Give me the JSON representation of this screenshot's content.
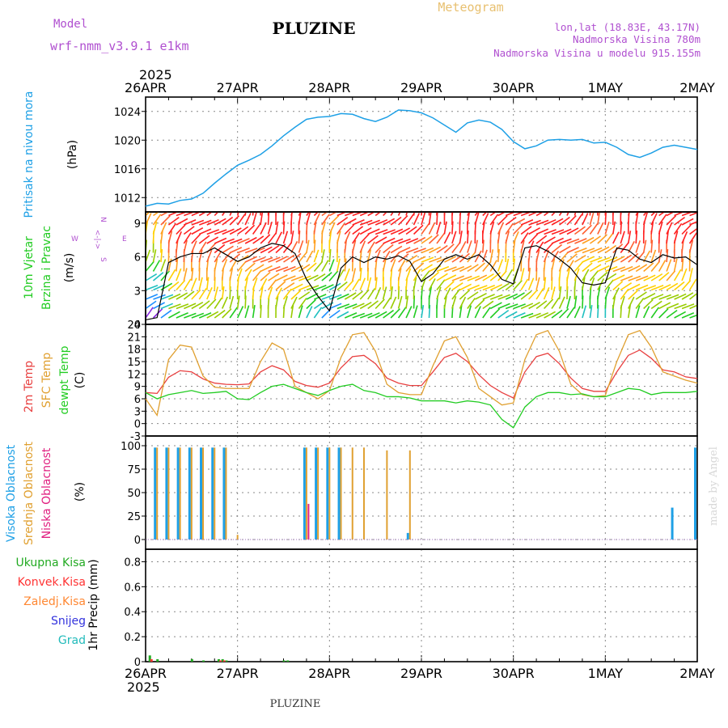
{
  "header": {
    "model_label": "Model",
    "model_name": "wrf-nmm_v3.9.1  e1km",
    "station": "PLUZINE",
    "product": "Meteogram",
    "lonlat": "lon,lat (18.83E, 43.17N)",
    "elevation": "Nadmorska Visina 780m",
    "model_elevation": "Nadmorska Visina u modelu 915.155m"
  },
  "footer": {
    "station": "PLUZINE",
    "credit": "made by Angel"
  },
  "time_axis": {
    "year": "2025",
    "labels": [
      "26APR",
      "27APR",
      "28APR",
      "29APR",
      "30APR",
      "1MAY",
      "2MAY"
    ]
  },
  "colors": {
    "pressure": "#1ea0e6",
    "wind_speed": "#000000",
    "gust": "#ff3333",
    "temp_2m": "#e84040",
    "temp_sfc": "#e0a030",
    "dewpoint": "#22cc22",
    "cloud_high": "#1ea0e6",
    "cloud_mid": "#e0a030",
    "cloud_low": "#e02080",
    "precip_total": "#22aa22",
    "precip_conv": "#ff3333"
  },
  "panels": {
    "pressure": {
      "labels": [
        {
          "text": "Pritisak na nivou mora",
          "color": "#1ea0e6"
        }
      ],
      "unit": "(hPa)",
      "ticks": [
        "1012",
        "1016",
        "1020",
        "1024"
      ]
    },
    "wind": {
      "labels": [
        {
          "text": "10m Vjetar",
          "color": "#22cc22"
        },
        {
          "text": "Brzina i Pravac",
          "color": "#22cc22"
        }
      ],
      "unit": "(m/s)",
      "ticks": [
        "0",
        "3",
        "6",
        "9"
      ],
      "compass": {
        "n": "N",
        "s": "S",
        "w": "W",
        "e": "E",
        "arrows": "<-|->"
      }
    },
    "temperature": {
      "labels": [
        {
          "text": "2m Temp",
          "color": "#e84040"
        },
        {
          "text": "SFC Temp",
          "color": "#e0a030"
        },
        {
          "text": "dewpt Temp",
          "color": "#22cc22"
        }
      ],
      "unit": "(C)",
      "ticks": [
        "-3",
        "0",
        "3",
        "6",
        "9",
        "12",
        "15",
        "18",
        "21",
        "24"
      ]
    },
    "cloud": {
      "labels": [
        {
          "text": "Visoka Oblacnost",
          "color": "#1ea0e6"
        },
        {
          "text": "Srednja Oblacnost",
          "color": "#e0a030"
        },
        {
          "text": "Niska Oblacnost",
          "color": "#e02080"
        }
      ],
      "unit": "(%)",
      "ticks": [
        "0",
        "25",
        "50",
        "75",
        "100"
      ]
    },
    "precip": {
      "unit": "1hr Precip (mm)",
      "ticks": [
        "0",
        "0.2",
        "0.4",
        "0.6",
        "0.8"
      ],
      "legend": [
        {
          "text": "Ukupna Kisa",
          "color": "#22aa22"
        },
        {
          "text": "Konvek.Kisa",
          "color": "#ff3333"
        },
        {
          "text": "Zaledj.Kisa",
          "color": "#ff8833"
        },
        {
          "text": "Snijeg",
          "color": "#3333dd"
        },
        {
          "text": "Grad",
          "color": "#22bbbb"
        }
      ]
    }
  },
  "chart_data": [
    {
      "type": "line",
      "title": "Pritisak na nivou mora",
      "ylabel": "(hPa)",
      "ylim": [
        1010,
        1026
      ],
      "x_unit": "hours from 26APR 00 UTC",
      "series": [
        {
          "name": "Pritisak na nivou mora",
          "x": [
            0,
            3,
            6,
            9,
            12,
            15,
            18,
            21,
            24,
            27,
            30,
            33,
            36,
            39,
            42,
            45,
            48,
            51,
            54,
            57,
            60,
            63,
            66,
            69,
            72,
            75,
            78,
            81,
            84,
            87,
            90,
            93,
            96,
            99,
            102,
            105,
            108,
            111,
            114,
            117,
            120,
            123,
            126,
            129,
            132,
            135,
            138,
            141,
            144
          ],
          "values": [
            1010.8,
            1011.2,
            1011.1,
            1011.6,
            1011.8,
            1012.6,
            1014.0,
            1015.3,
            1016.5,
            1017.2,
            1018.0,
            1019.2,
            1020.6,
            1021.8,
            1022.9,
            1023.2,
            1023.3,
            1023.7,
            1023.6,
            1023.0,
            1022.6,
            1023.2,
            1024.2,
            1024.1,
            1023.8,
            1023.1,
            1022.1,
            1021.1,
            1022.4,
            1022.8,
            1022.5,
            1021.5,
            1019.8,
            1018.8,
            1019.2,
            1020.0,
            1020.1,
            1020.0,
            1020.1,
            1019.6,
            1019.7,
            1019.0,
            1018.0,
            1017.6,
            1018.2,
            1019.0,
            1019.3,
            1019.0,
            1018.7
          ]
        }
      ]
    },
    {
      "type": "line",
      "title": "10m Vjetar Brzina i Pravac",
      "ylabel": "(m/s)",
      "ylim": [
        0,
        10
      ],
      "x_unit": "hours from 26APR 00 UTC",
      "series": [
        {
          "name": "10m Vjetar",
          "x": [
            0,
            3,
            6,
            9,
            12,
            15,
            18,
            21,
            24,
            27,
            30,
            33,
            36,
            39,
            42,
            45,
            48,
            51,
            54,
            57,
            60,
            63,
            66,
            69,
            72,
            75,
            78,
            81,
            84,
            87,
            90,
            93,
            96,
            99,
            102,
            105,
            108,
            111,
            114,
            117,
            120,
            123,
            126,
            129,
            132,
            135,
            138,
            141,
            144
          ],
          "values": [
            0.4,
            0.6,
            5.5,
            6.0,
            6.3,
            6.3,
            6.8,
            6.2,
            5.6,
            6.0,
            6.8,
            7.2,
            7.0,
            6.3,
            4.0,
            2.5,
            1.2,
            5.0,
            6.0,
            5.5,
            6.0,
            5.8,
            6.1,
            5.6,
            3.8,
            4.5,
            5.8,
            6.2,
            5.8,
            6.2,
            5.3,
            4.0,
            3.6,
            6.8,
            7.0,
            6.5,
            5.8,
            5.0,
            3.7,
            3.5,
            3.7,
            6.8,
            6.6,
            5.8,
            5.5,
            6.2,
            5.9,
            6.0,
            5.3
          ]
        }
      ]
    },
    {
      "type": "line",
      "title": "2m Temp / SFC Temp / dewpt Temp",
      "ylabel": "(C)",
      "ylim": [
        -3,
        24
      ],
      "x_unit": "hours from 26APR 00 UTC",
      "x": [
        0,
        3,
        6,
        9,
        12,
        15,
        18,
        21,
        24,
        27,
        30,
        33,
        36,
        39,
        42,
        45,
        48,
        51,
        54,
        57,
        60,
        63,
        66,
        69,
        72,
        75,
        78,
        81,
        84,
        87,
        90,
        93,
        96,
        99,
        102,
        105,
        108,
        111,
        114,
        117,
        120,
        123,
        126,
        129,
        132,
        135,
        138,
        141,
        144
      ],
      "series": [
        {
          "name": "2m Temp",
          "values": [
            7.5,
            7.3,
            11.2,
            12.8,
            12.5,
            10.8,
            9.8,
            9.5,
            9.4,
            9.6,
            12.5,
            14.0,
            13.0,
            10.2,
            9.2,
            8.8,
            9.8,
            13.5,
            16.2,
            16.5,
            14.5,
            11.0,
            9.8,
            9.2,
            9.2,
            12.5,
            16.0,
            17.0,
            15.0,
            11.8,
            9.2,
            7.5,
            6.2,
            12.5,
            16.2,
            17.0,
            14.5,
            11.0,
            8.5,
            7.8,
            7.8,
            12.5,
            16.5,
            17.8,
            15.8,
            13.0,
            12.5,
            11.3,
            10.9
          ]
        },
        {
          "name": "SFC Temp",
          "values": [
            6.0,
            2.0,
            15.5,
            19.0,
            18.5,
            11.5,
            8.8,
            8.5,
            8.5,
            8.5,
            15.0,
            19.5,
            18.0,
            9.0,
            7.5,
            6.0,
            8.0,
            16.0,
            21.5,
            22.0,
            17.5,
            9.5,
            7.5,
            7.0,
            7.0,
            14.0,
            20.0,
            21.0,
            16.0,
            8.5,
            6.5,
            4.5,
            5.0,
            15.5,
            21.5,
            22.5,
            17.5,
            9.5,
            7.0,
            6.5,
            6.8,
            15.0,
            21.5,
            22.5,
            18.5,
            12.5,
            11.5,
            10.5,
            9.8
          ]
        },
        {
          "name": "dewpt Temp",
          "values": [
            7.5,
            6.0,
            7.0,
            7.5,
            8.0,
            7.3,
            7.5,
            7.8,
            6.0,
            5.8,
            7.5,
            9.0,
            9.5,
            8.5,
            7.5,
            6.8,
            8.0,
            9.0,
            9.5,
            8.0,
            7.5,
            6.5,
            6.5,
            6.2,
            5.5,
            5.5,
            5.5,
            5.0,
            5.5,
            5.2,
            4.5,
            1.0,
            -1.0,
            4.0,
            6.5,
            7.5,
            7.5,
            7.0,
            7.2,
            6.5,
            6.5,
            7.5,
            8.5,
            8.2,
            7.0,
            7.5,
            7.5,
            7.5,
            7.8
          ]
        }
      ]
    },
    {
      "type": "bar",
      "title": "Visoka / Srednja / Niska Oblacnost",
      "ylabel": "(%)",
      "ylim": [
        0,
        100
      ],
      "x_unit": "hours from 26APR 00 UTC",
      "x": [
        0,
        3,
        6,
        9,
        12,
        15,
        18,
        21,
        24,
        27,
        30,
        33,
        36,
        39,
        42,
        45,
        48,
        51,
        54,
        57,
        60,
        63,
        66,
        69,
        72,
        75,
        78,
        81,
        84,
        87,
        90,
        93,
        96,
        99,
        102,
        105,
        108,
        111,
        114,
        117,
        120,
        123,
        126,
        129,
        132,
        135,
        138,
        141,
        144
      ],
      "series": [
        {
          "name": "Visoka Oblacnost",
          "values": [
            0,
            98,
            98,
            98,
            98,
            98,
            98,
            98,
            0,
            0,
            0,
            0,
            0,
            0,
            98,
            98,
            98,
            98,
            0,
            0,
            0,
            0,
            0,
            7,
            0,
            0,
            0,
            0,
            0,
            0,
            0,
            0,
            0,
            0,
            0,
            0,
            0,
            0,
            0,
            0,
            0,
            0,
            0,
            0,
            0,
            0,
            34,
            0,
            98
          ]
        },
        {
          "name": "Srednja Oblacnost",
          "values": [
            0,
            98,
            98,
            98,
            98,
            98,
            98,
            98,
            5,
            0,
            0,
            0,
            0,
            0,
            98,
            98,
            98,
            98,
            98,
            98,
            0,
            95,
            0,
            95,
            0,
            0,
            0,
            0,
            0,
            0,
            0,
            0,
            0,
            0,
            0,
            0,
            0,
            0,
            0,
            0,
            0,
            0,
            0,
            0,
            0,
            0,
            0,
            0,
            0
          ]
        },
        {
          "name": "Niska Oblacnost",
          "values": [
            0,
            0,
            0,
            0,
            0,
            0,
            0,
            0,
            0,
            0,
            0,
            0,
            0,
            0,
            38,
            0,
            0,
            0,
            0,
            0,
            0,
            0,
            0,
            0,
            0,
            0,
            0,
            0,
            0,
            0,
            0,
            0,
            0,
            0,
            0,
            0,
            0,
            0,
            0,
            0,
            0,
            0,
            0,
            0,
            0,
            0,
            0,
            0,
            0
          ]
        }
      ]
    },
    {
      "type": "bar",
      "title": "1hr Precip",
      "ylabel": "1hr Precip (mm)",
      "ylim": [
        0,
        0.9
      ],
      "x_unit": "hours from 26APR 00 UTC",
      "series": [
        {
          "name": "Ukupna Kisa",
          "x": [
            1,
            3,
            12,
            15,
            19,
            20,
            21,
            36,
            37
          ],
          "values": [
            0.05,
            0.02,
            0.02,
            0.01,
            0.02,
            0.02,
            0.01,
            0.01,
            0.01
          ]
        },
        {
          "name": "Konvek.Kisa",
          "x": [
            1,
            19,
            20
          ],
          "values": [
            0.02,
            0.01,
            0.01
          ]
        }
      ]
    }
  ]
}
